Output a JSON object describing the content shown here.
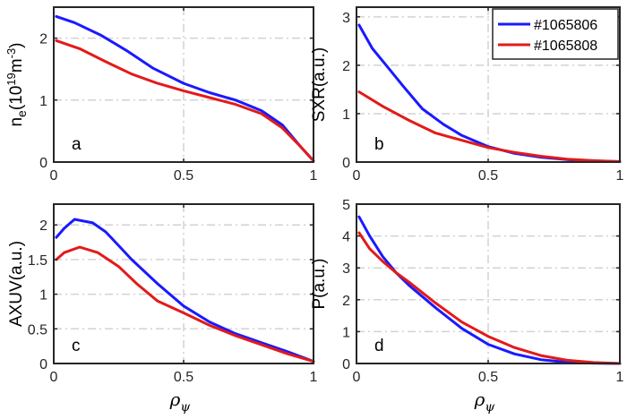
{
  "colors": {
    "series1": "#1a1aff",
    "series2": "#e31a1a",
    "grid": "#d2d2d2",
    "axis": "#262626"
  },
  "legend": [
    "#1065806",
    "#1065808"
  ],
  "chart_data": [
    {
      "type": "line",
      "panel_label": "a",
      "ylabel": {
        "main": "n",
        "sub": "e",
        "open": "(10",
        "sup1": "19",
        "mid": "m",
        "sup2": "-3",
        "close": ")"
      },
      "xlabel": "",
      "xlim": [
        0,
        1
      ],
      "ylim": [
        0,
        2.5
      ],
      "xticks": [
        "0",
        "0.5",
        "1"
      ],
      "xtick_values": [
        0,
        0.5,
        1
      ],
      "yticks": [
        "0",
        "1",
        "2"
      ],
      "ytick_values": [
        0,
        1,
        2
      ],
      "grid": true,
      "series": [
        {
          "name": "#1065806",
          "x": [
            0.01,
            0.08,
            0.18,
            0.28,
            0.38,
            0.5,
            0.6,
            0.7,
            0.8,
            0.88,
            0.95,
            1.0
          ],
          "y": [
            2.35,
            2.25,
            2.05,
            1.8,
            1.52,
            1.27,
            1.12,
            1.0,
            0.83,
            0.6,
            0.25,
            0.02
          ]
        },
        {
          "name": "#1065808",
          "x": [
            0.01,
            0.1,
            0.2,
            0.3,
            0.4,
            0.5,
            0.6,
            0.7,
            0.8,
            0.88,
            0.95,
            1.0
          ],
          "y": [
            1.96,
            1.83,
            1.62,
            1.42,
            1.27,
            1.15,
            1.04,
            0.93,
            0.78,
            0.55,
            0.25,
            0.02
          ]
        }
      ]
    },
    {
      "type": "line",
      "panel_label": "b",
      "ylabel": {
        "main": "SXR(a.u.)"
      },
      "xlabel": "",
      "xlim": [
        0,
        1
      ],
      "ylim": [
        0,
        3.2
      ],
      "xticks": [
        "0",
        "0.5",
        "1"
      ],
      "xtick_values": [
        0,
        0.5,
        1
      ],
      "yticks": [
        "0",
        "1",
        "2",
        "3"
      ],
      "ytick_values": [
        0,
        1,
        2,
        3
      ],
      "grid": true,
      "legend": "top-right",
      "series": [
        {
          "name": "#1065806",
          "x": [
            0.01,
            0.06,
            0.12,
            0.18,
            0.25,
            0.33,
            0.4,
            0.5,
            0.6,
            0.7,
            0.8,
            0.9,
            1.0
          ],
          "y": [
            2.83,
            2.35,
            1.95,
            1.55,
            1.1,
            0.78,
            0.55,
            0.32,
            0.18,
            0.1,
            0.05,
            0.02,
            0.01
          ]
        },
        {
          "name": "#1065808",
          "x": [
            0.01,
            0.1,
            0.2,
            0.3,
            0.4,
            0.5,
            0.6,
            0.7,
            0.8,
            0.9,
            1.0
          ],
          "y": [
            1.45,
            1.15,
            0.86,
            0.6,
            0.45,
            0.3,
            0.2,
            0.12,
            0.06,
            0.03,
            0.01
          ]
        }
      ]
    },
    {
      "type": "line",
      "panel_label": "c",
      "ylabel": {
        "main": "AXUV(a.u.)"
      },
      "xlabel": "ρ",
      "xlabel_sub": "ψ",
      "xlim": [
        0,
        1
      ],
      "ylim": [
        0,
        2.3
      ],
      "xticks": [
        "0",
        "0.5",
        "1"
      ],
      "xtick_values": [
        0,
        0.5,
        1
      ],
      "yticks": [
        "0",
        "0.5",
        "1",
        "1.5",
        "2"
      ],
      "ytick_values": [
        0,
        0.5,
        1,
        1.5,
        2
      ],
      "grid": true,
      "series": [
        {
          "name": "#1065806",
          "x": [
            0.01,
            0.04,
            0.08,
            0.15,
            0.2,
            0.25,
            0.3,
            0.4,
            0.5,
            0.6,
            0.7,
            0.8,
            0.9,
            1.0
          ],
          "y": [
            1.82,
            1.95,
            2.08,
            2.03,
            1.9,
            1.7,
            1.5,
            1.15,
            0.83,
            0.6,
            0.43,
            0.3,
            0.17,
            0.03
          ]
        },
        {
          "name": "#1065808",
          "x": [
            0.01,
            0.04,
            0.1,
            0.17,
            0.25,
            0.32,
            0.4,
            0.5,
            0.6,
            0.7,
            0.8,
            0.9,
            1.0
          ],
          "y": [
            1.5,
            1.6,
            1.68,
            1.6,
            1.4,
            1.15,
            0.9,
            0.73,
            0.55,
            0.4,
            0.27,
            0.14,
            0.03
          ]
        }
      ]
    },
    {
      "type": "line",
      "panel_label": "d",
      "ylabel": {
        "main": "P(a.u.)"
      },
      "xlabel": "ρ",
      "xlabel_sub": "ψ",
      "xlim": [
        0,
        1
      ],
      "ylim": [
        0,
        5
      ],
      "xticks": [
        "0",
        "0.5",
        "1"
      ],
      "xtick_values": [
        0,
        0.5,
        1
      ],
      "yticks": [
        "0",
        "1",
        "2",
        "3",
        "4",
        "5"
      ],
      "ytick_values": [
        0,
        1,
        2,
        3,
        4,
        5
      ],
      "grid": true,
      "series": [
        {
          "name": "#1065806",
          "x": [
            0.01,
            0.05,
            0.1,
            0.15,
            0.2,
            0.3,
            0.4,
            0.5,
            0.6,
            0.7,
            0.8,
            0.9,
            1.0
          ],
          "y": [
            4.6,
            4.0,
            3.35,
            2.85,
            2.45,
            1.75,
            1.1,
            0.6,
            0.3,
            0.12,
            0.04,
            0.01,
            0.0
          ]
        },
        {
          "name": "#1065808",
          "x": [
            0.01,
            0.05,
            0.1,
            0.15,
            0.2,
            0.3,
            0.4,
            0.5,
            0.6,
            0.7,
            0.8,
            0.9,
            1.0
          ],
          "y": [
            4.1,
            3.6,
            3.2,
            2.85,
            2.55,
            1.9,
            1.3,
            0.85,
            0.5,
            0.25,
            0.1,
            0.03,
            0.0
          ]
        }
      ]
    }
  ]
}
